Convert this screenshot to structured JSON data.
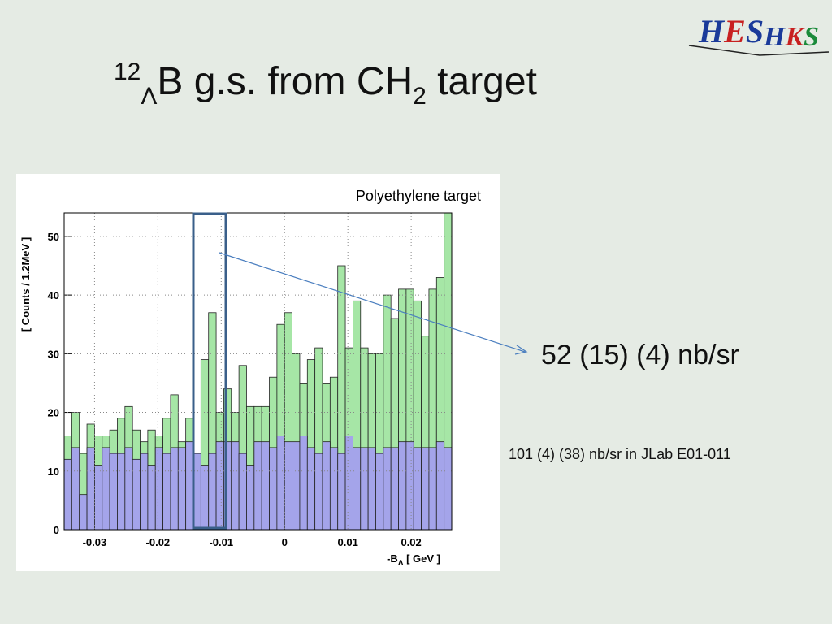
{
  "slide_title": {
    "mass": "12",
    "hyperon": "Λ",
    "main": "B g.s. from CH",
    "sub": "2",
    "tail": " target"
  },
  "logo": {
    "left": [
      "H",
      "E",
      "S"
    ],
    "right": [
      "H",
      "K",
      "S"
    ]
  },
  "result": "52 (15) (4) nb/sr",
  "reference": "101 (4) (38) nb/sr in JLab E01-011",
  "chart_data": {
    "type": "histogram",
    "annotation": "Polyethylene target",
    "y_label": "[ Counts / 1.2MeV ]",
    "x_label": {
      "main": "-B",
      "sub": "Λ",
      "unit": " [ GeV ]"
    },
    "bins": [
      -0.0348,
      -0.0336,
      -0.0324,
      -0.0312,
      -0.03,
      -0.0288,
      -0.0276,
      -0.0264,
      -0.0252,
      -0.024,
      -0.0228,
      -0.0216,
      -0.0204,
      -0.0192,
      -0.018,
      -0.0168,
      -0.0156,
      -0.0144,
      -0.0132,
      -0.012,
      -0.0108,
      -0.0096,
      -0.0084,
      -0.0072,
      -0.006,
      -0.0048,
      -0.0036,
      -0.0024,
      -0.0012,
      0,
      0.0012,
      0.0024,
      0.0036,
      0.0048,
      0.006,
      0.0072,
      0.0084,
      0.0096,
      0.0108,
      0.012,
      0.0132,
      0.0144,
      0.0156,
      0.0168,
      0.018,
      0.0192,
      0.0204,
      0.0216,
      0.0228,
      0.024,
      0.0252,
      0.0264
    ],
    "series": [
      {
        "color": "#a6e6a6",
        "values": [
          16,
          20,
          13,
          18,
          16,
          16,
          17,
          19,
          21,
          17,
          15,
          17,
          16,
          19,
          23,
          15,
          19,
          12,
          29,
          37,
          20,
          24,
          20,
          28,
          21,
          21,
          21,
          26,
          35,
          37,
          30,
          25,
          29,
          31,
          25,
          26,
          45,
          31,
          39,
          31,
          30,
          30,
          40,
          36,
          41,
          41,
          39,
          33,
          41,
          43,
          54
        ]
      },
      {
        "color": "#a4a4ea",
        "values": [
          12,
          14,
          6,
          14,
          11,
          14,
          13,
          13,
          14,
          12,
          13,
          11,
          14,
          13,
          14,
          14,
          15,
          13,
          11,
          13,
          15,
          15,
          15,
          13,
          11,
          15,
          15,
          14,
          16,
          15,
          15,
          16,
          14,
          13,
          15,
          14,
          13,
          16,
          14,
          14,
          14,
          13,
          14,
          14,
          15,
          15,
          14,
          14,
          14,
          15,
          14
        ]
      }
    ],
    "xlim": [
      -0.0348,
      0.0264
    ],
    "ylim": [
      0,
      54
    ],
    "xticks": [
      -0.03,
      -0.02,
      -0.01,
      0,
      0.01,
      0.02
    ],
    "yticks": [
      0,
      10,
      20,
      30,
      40,
      50
    ],
    "grid": true
  }
}
